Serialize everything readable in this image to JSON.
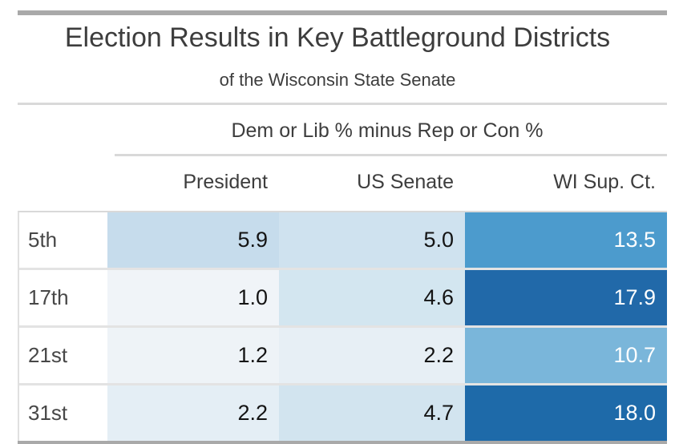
{
  "header": {
    "title": "Election Results in Key Battleground Districts",
    "subtitle": "of the Wisconsin State Senate"
  },
  "table": {
    "spanner": "Dem or Lib % minus Rep or Con %",
    "columns": [
      "President",
      "US Senate",
      "WI Sup. Ct."
    ],
    "rows": [
      {
        "label": "5th",
        "cells": [
          {
            "text": "5.9",
            "bg": "#c6dcec",
            "fg": "#141414"
          },
          {
            "text": "5.0",
            "bg": "#cfe2ef",
            "fg": "#141414"
          },
          {
            "text": "13.5",
            "bg": "#4c9bcd",
            "fg": "#ffffff"
          }
        ]
      },
      {
        "label": "17th",
        "cells": [
          {
            "text": "1.0",
            "bg": "#f0f4f8",
            "fg": "#141414"
          },
          {
            "text": "4.6",
            "bg": "#d3e6f0",
            "fg": "#141414"
          },
          {
            "text": "17.9",
            "bg": "#2169a9",
            "fg": "#ffffff"
          }
        ]
      },
      {
        "label": "21st",
        "cells": [
          {
            "text": "1.2",
            "bg": "#eef3f7",
            "fg": "#141414"
          },
          {
            "text": "2.2",
            "bg": "#e7eff5",
            "fg": "#141414"
          },
          {
            "text": "10.7",
            "bg": "#7ab6da",
            "fg": "#ffffff"
          }
        ]
      },
      {
        "label": "31st",
        "cells": [
          {
            "text": "2.2",
            "bg": "#e4eef5",
            "fg": "#141414"
          },
          {
            "text": "4.7",
            "bg": "#d2e4ef",
            "fg": "#141414"
          },
          {
            "text": "18.0",
            "bg": "#1e6aa9",
            "fg": "#ffffff"
          }
        ]
      }
    ]
  },
  "chart_data": {
    "type": "table",
    "title": "Election Results in Key Battleground Districts",
    "subtitle": "of the Wisconsin State Senate",
    "column_spanner": "Dem or Lib % minus Rep or Con %",
    "columns": [
      "President",
      "US Senate",
      "WI Sup. Ct."
    ],
    "rows": [
      {
        "label": "5th",
        "values": [
          5.9,
          5.0,
          13.5
        ]
      },
      {
        "label": "17th",
        "values": [
          1.0,
          4.6,
          17.9
        ]
      },
      {
        "label": "21st",
        "values": [
          1.2,
          2.2,
          10.7
        ]
      },
      {
        "label": "31st",
        "values": [
          2.2,
          4.7,
          18.0
        ]
      }
    ],
    "shading": "cells filled on a light-to-dark blue scale proportional to value (~0 to ~18)",
    "palette_endpoints": [
      "#f0f4f8",
      "#1e6aa9"
    ]
  },
  "colors": {
    "bar_gray": "#a9a9a9",
    "rule_gray": "#d9d9d9",
    "header_text": "#3d3d3d",
    "dark_blue": "#1e6aa9",
    "mid_blue": "#4c9bcd"
  }
}
